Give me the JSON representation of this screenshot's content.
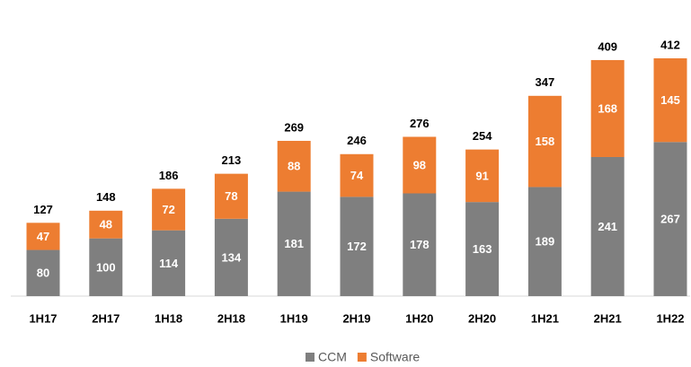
{
  "chart_data": {
    "type": "stacked_bar",
    "categories": [
      "1H17",
      "2H17",
      "1H18",
      "2H18",
      "1H19",
      "2H19",
      "1H20",
      "2H20",
      "1H21",
      "2H21",
      "1H22"
    ],
    "series": [
      {
        "name": "CCM",
        "color": "#7f7f7f",
        "values": [
          80,
          100,
          114,
          134,
          181,
          172,
          178,
          163,
          189,
          241,
          267
        ]
      },
      {
        "name": "Software",
        "color": "#ed7d31",
        "values": [
          47,
          48,
          72,
          78,
          88,
          74,
          98,
          91,
          158,
          168,
          145
        ]
      }
    ],
    "totals": [
      127,
      148,
      186,
      213,
      269,
      246,
      276,
      254,
      347,
      409,
      412
    ],
    "legend": "bottom"
  }
}
